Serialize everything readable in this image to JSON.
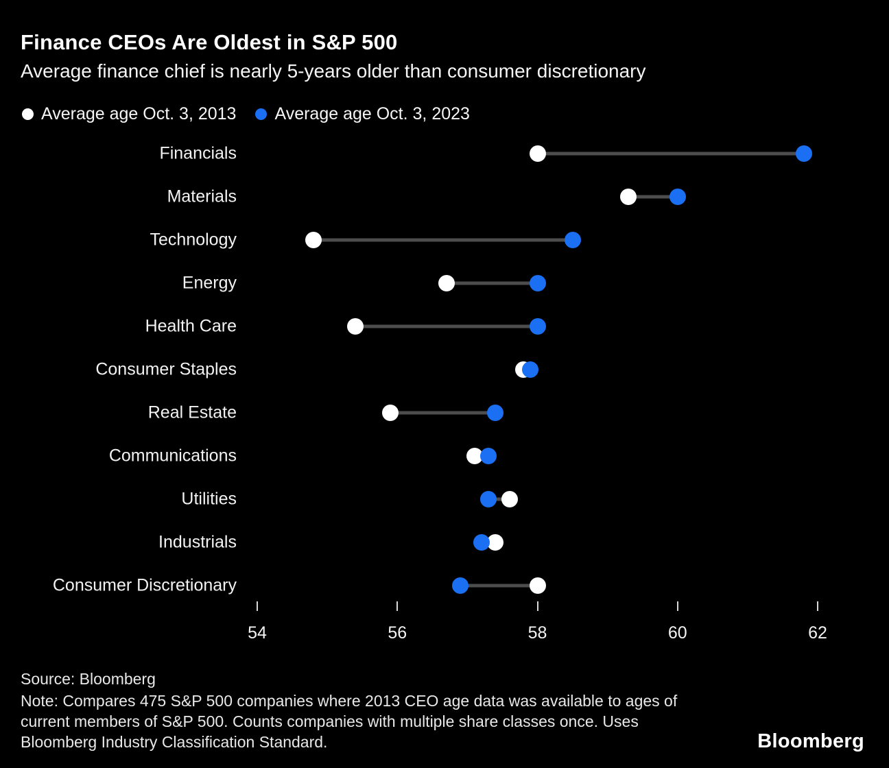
{
  "header": {
    "title": "Finance CEOs Are Oldest in S&P 500",
    "subtitle": "Average finance chief is nearly 5-years older than consumer discretionary"
  },
  "legend": [
    {
      "label": "Average age Oct. 3, 2013",
      "color": "#ffffff"
    },
    {
      "label": "Average age Oct. 3, 2023",
      "color": "#1b6ff3"
    }
  ],
  "chart_data": {
    "type": "dumbbell",
    "title": "Finance CEOs Are Oldest in S&P 500",
    "subtitle": "Average finance chief is nearly 5-years older than consumer discretionary",
    "categories": [
      "Financials",
      "Materials",
      "Technology",
      "Energy",
      "Health Care",
      "Consumer Staples",
      "Real Estate",
      "Communications",
      "Utilities",
      "Industrials",
      "Consumer Discretionary"
    ],
    "series": [
      {
        "name": "Average age Oct. 3, 2013",
        "color": "#ffffff",
        "values": [
          58.0,
          59.3,
          54.8,
          56.7,
          55.4,
          57.8,
          55.9,
          57.1,
          57.6,
          57.4,
          58.0
        ]
      },
      {
        "name": "Average age Oct. 3, 2023",
        "color": "#1b6ff3",
        "values": [
          61.8,
          60.0,
          58.5,
          58.0,
          58.0,
          57.9,
          57.4,
          57.3,
          57.3,
          57.2,
          56.9
        ]
      }
    ],
    "xlabel": "",
    "ylabel": "",
    "xlim": [
      54,
      62
    ],
    "xticks": [
      54,
      56,
      58,
      60,
      62
    ],
    "grid": false,
    "legend_position": "top-left",
    "connector_color": "#4d4d4d",
    "background": "#000000"
  },
  "footer": {
    "source": "Source: Bloomberg",
    "note": "Note: Compares 475 S&P 500 companies where 2013 CEO age data was available to ages of current members of S&P 500. Counts companies with multiple share classes once. Uses Bloomberg Industry Classification Standard.",
    "logo": "Bloomberg"
  }
}
